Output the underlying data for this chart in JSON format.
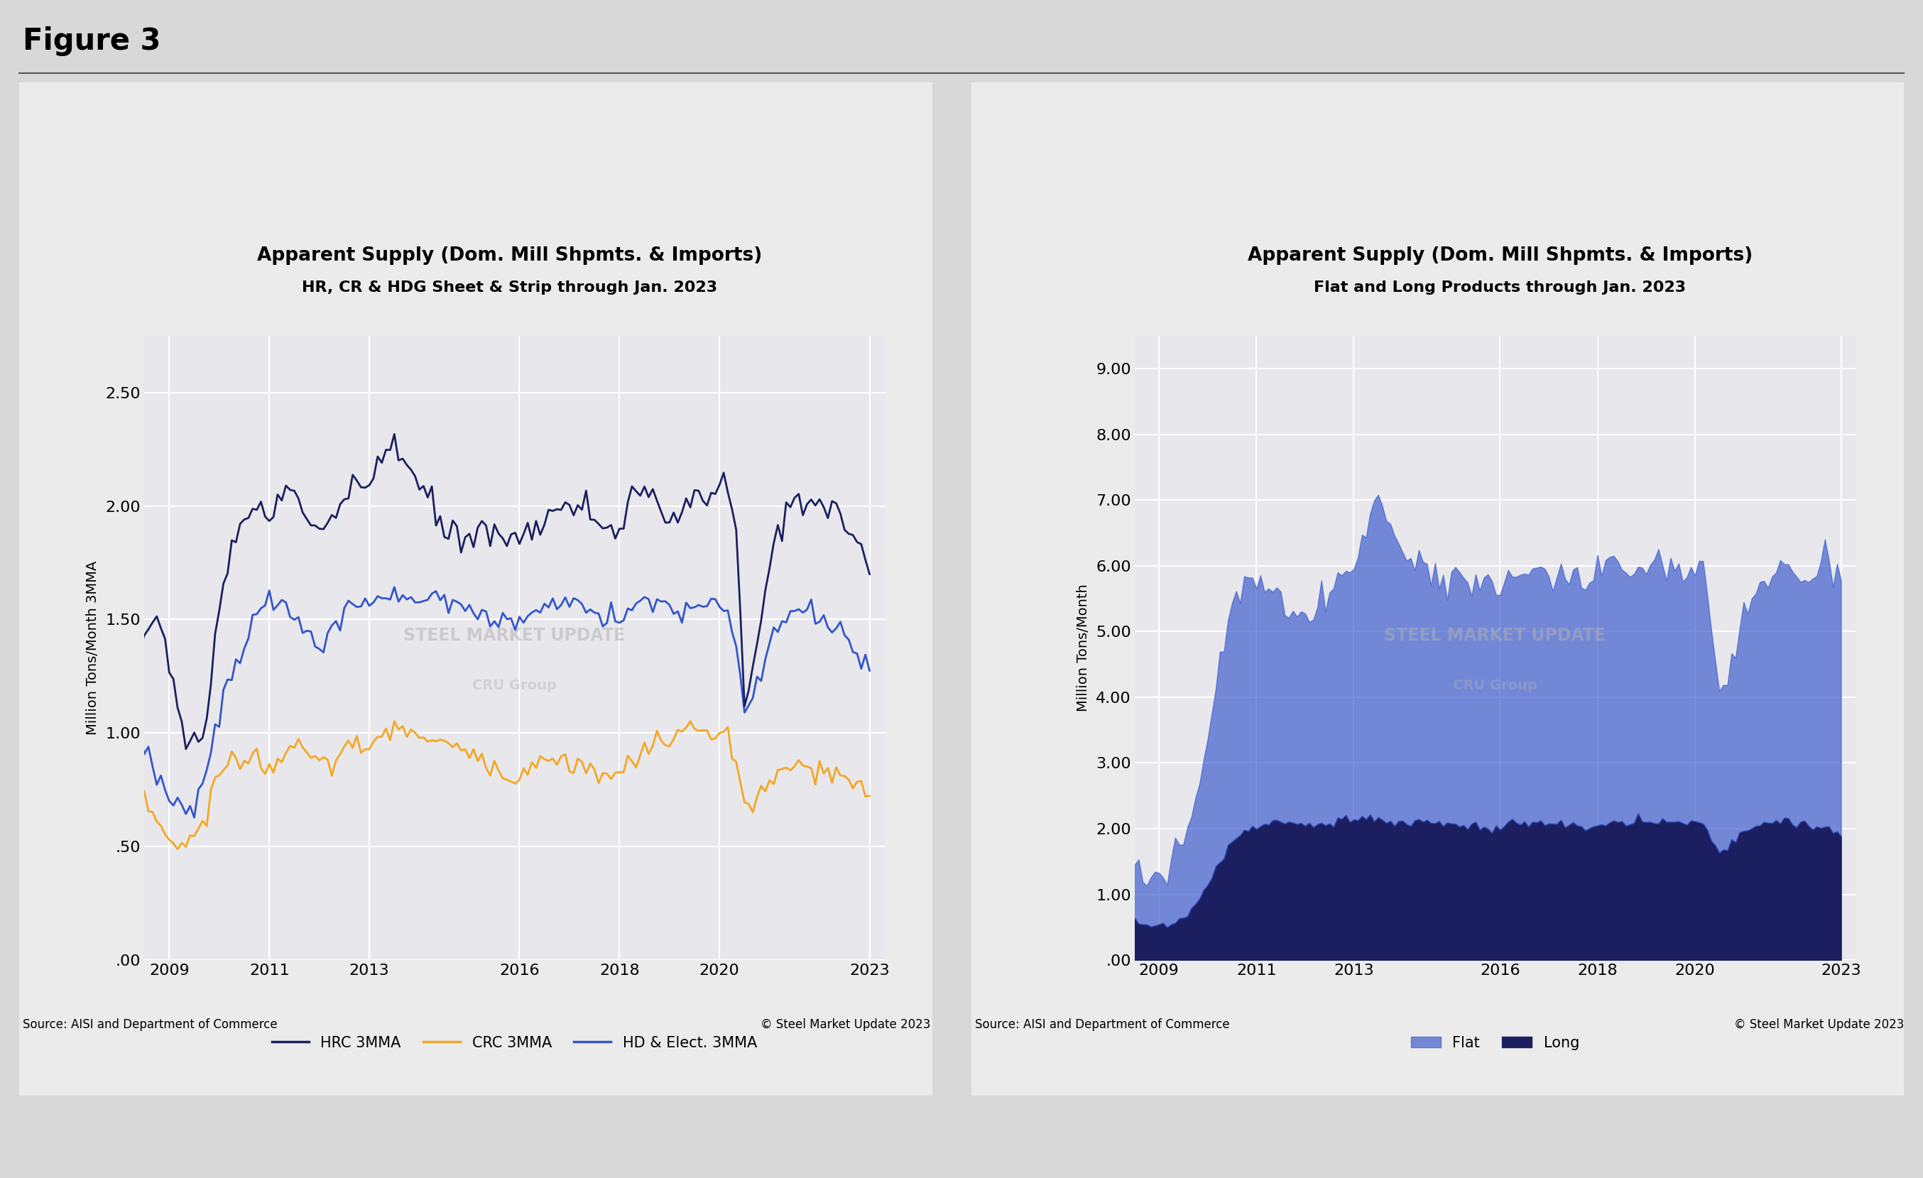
{
  "fig_label": "Figure 3",
  "outer_bg": "#d8d8d8",
  "panel_bg": "#ebebeb",
  "plot_bg": "#e8e8ec",
  "left_title": "Apparent Supply (Dom. Mill Shpmts. & Imports)",
  "left_subtitle": "HR, CR & HDG Sheet & Strip through Jan. 2023",
  "left_ylabel": "Million Tons/Month 3MMA",
  "left_ylim": [
    0.0,
    2.75
  ],
  "left_yticks": [
    0.0,
    0.5,
    1.0,
    1.5,
    2.0,
    2.5
  ],
  "left_ytick_labels": [
    ".00",
    ".50",
    "1.00",
    "1.50",
    "2.00",
    "2.50"
  ],
  "left_source": "Source: AISI and Department of Commerce",
  "left_copyright": "© Steel Market Update 2023",
  "right_title": "Apparent Supply (Dom. Mill Shpmts. & Imports)",
  "right_subtitle": "Flat and Long Products through Jan. 2023",
  "right_ylabel": "Million Tons/Month",
  "right_ylim": [
    0.0,
    9.5
  ],
  "right_yticks": [
    0.0,
    1.0,
    2.0,
    3.0,
    4.0,
    5.0,
    6.0,
    7.0,
    8.0,
    9.0
  ],
  "right_ytick_labels": [
    ".00",
    "1.00",
    "2.00",
    "3.00",
    "4.00",
    "5.00",
    "6.00",
    "7.00",
    "8.00",
    "9.00"
  ],
  "right_source": "Source: AISI and Department of Commerce",
  "right_copyright": "© Steel Market Update 2023",
  "hrc_color": "#1b1f5f",
  "crc_color": "#f5a623",
  "hdg_color": "#3355cc",
  "flat_color": "#3355cc",
  "long_color": "#1b1f5f",
  "x_ticks": [
    2009,
    2011,
    2013,
    2016,
    2018,
    2020,
    2023
  ],
  "xlim_left": 2008.5,
  "xlim_right": 2023.3
}
